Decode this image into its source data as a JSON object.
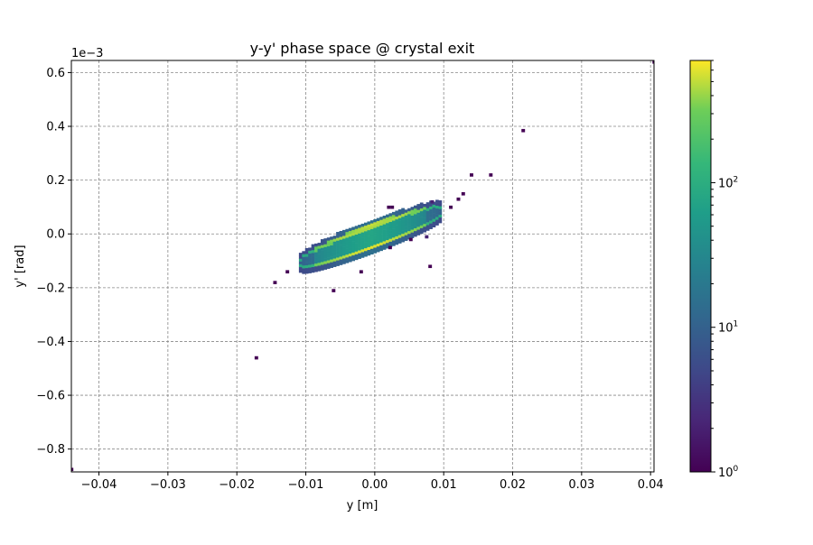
{
  "chart_data": {
    "type": "heatmap",
    "title": "y-y' phase space @ crystal exit",
    "xlabel": "y [m]",
    "ylabel": "y' [rad]",
    "y_offset_label": "1e−3",
    "xlim": [
      -0.044,
      0.0405
    ],
    "ylim": [
      -0.885,
      0.645
    ],
    "y_scale_exponent": -3,
    "grid": true,
    "x_ticks": [
      -0.04,
      -0.03,
      -0.02,
      -0.01,
      0.0,
      0.01,
      0.02,
      0.03,
      0.04
    ],
    "x_tick_labels": [
      "−0.04",
      "−0.03",
      "−0.02",
      "−0.01",
      "0.00",
      "0.01",
      "0.02",
      "0.03",
      "0.04"
    ],
    "y_ticks": [
      -0.8,
      -0.6,
      -0.4,
      -0.2,
      0.0,
      0.2,
      0.4,
      0.6
    ],
    "y_tick_labels": [
      "−0.8",
      "−0.6",
      "−0.4",
      "−0.2",
      "0.0",
      "0.2",
      "0.4",
      "0.6"
    ],
    "colorbar": {
      "scale": "log",
      "range": [
        1,
        700
      ],
      "colormap": "viridis",
      "ticks": [
        {
          "value": 1,
          "base": "10",
          "exp": "0"
        },
        {
          "value": 10,
          "base": "10",
          "exp": "1"
        },
        {
          "value": 100,
          "base": "10",
          "exp": "2"
        }
      ]
    },
    "ellipse_core": {
      "center_y": 0.0,
      "center_yp": 0.0,
      "y_extent": [
        -0.011,
        0.0095
      ],
      "yp_extent": [
        -0.12,
        0.09
      ]
    },
    "sparse_points": [
      {
        "y": 0.0405,
        "yp": 0.64,
        "count": 1
      },
      {
        "y": -0.044,
        "yp": -0.875,
        "count": 1
      },
      {
        "y": 0.0215,
        "yp": 0.385,
        "count": 1
      },
      {
        "y": 0.014,
        "yp": 0.22,
        "count": 1
      },
      {
        "y": 0.0168,
        "yp": 0.22,
        "count": 1
      },
      {
        "y": 0.0128,
        "yp": 0.15,
        "count": 1
      },
      {
        "y": 0.0121,
        "yp": 0.13,
        "count": 1
      },
      {
        "y": 0.011,
        "yp": 0.1,
        "count": 1
      },
      {
        "y": 0.0083,
        "yp": 0.12,
        "count": 2
      },
      {
        "y": 0.0025,
        "yp": 0.1,
        "count": 1
      },
      {
        "y": 0.002,
        "yp": 0.1,
        "count": 1
      },
      {
        "y": -0.0172,
        "yp": -0.46,
        "count": 1
      },
      {
        "y": -0.0145,
        "yp": -0.18,
        "count": 1
      },
      {
        "y": -0.0127,
        "yp": -0.14,
        "count": 1
      },
      {
        "y": -0.006,
        "yp": -0.21,
        "count": 1
      },
      {
        "y": -0.002,
        "yp": -0.14,
        "count": 1
      },
      {
        "y": 0.0022,
        "yp": -0.05,
        "count": 1
      },
      {
        "y": 0.008,
        "yp": -0.12,
        "count": 1
      },
      {
        "y": 0.0075,
        "yp": -0.01,
        "count": 2
      },
      {
        "y": 0.0052,
        "yp": -0.02,
        "count": 1
      }
    ]
  }
}
